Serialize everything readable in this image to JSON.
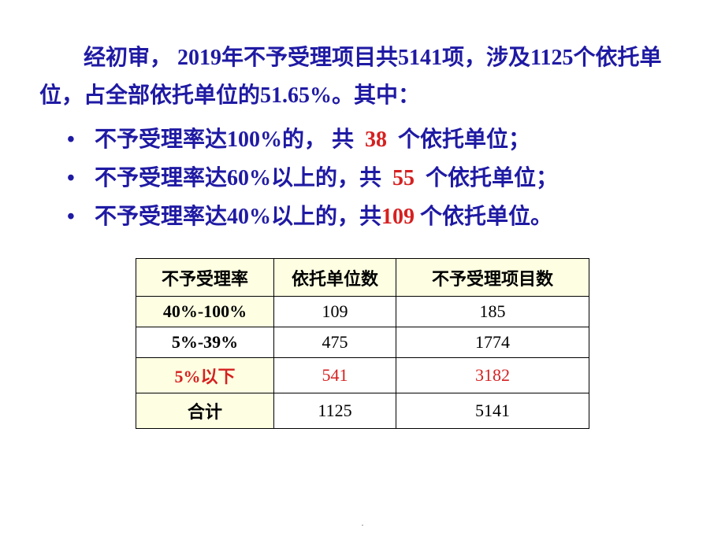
{
  "intro": "经初审， 2019年不予受理项目共5141项，涉及1125个依托单位，占全部依托单位的51.65%。其中：",
  "bullets": [
    {
      "prefix": "不予受理率达100%的，   共 ",
      "num": "38",
      "suffix": " 个依托单位；"
    },
    {
      "prefix": "不予受理率达60%以上的，共 ",
      "num": "55",
      "suffix": " 个依托单位；"
    },
    {
      "prefix": "不予受理率达40%以上的，共",
      "num": "109",
      "suffix": " 个依托单位。"
    }
  ],
  "table": {
    "columns": [
      {
        "label": "不予受理率",
        "width_class": "col-rate"
      },
      {
        "label": "依托单位数",
        "width_class": "col-units"
      },
      {
        "label": "不予受理项目数",
        "width_class": "col-projects"
      }
    ],
    "rows": [
      {
        "rate": "40%-100%",
        "units": "109",
        "projects": "185",
        "classes": "row-highlight row-bold"
      },
      {
        "rate": "5%-39%",
        "units": "475",
        "projects": "1774",
        "classes": "row-bold"
      },
      {
        "rate": "5%以下",
        "units": "541",
        "projects": "3182",
        "classes": "row-highlight row-red"
      },
      {
        "rate": "合计",
        "units": "1125",
        "projects": "5141",
        "classes": "row-total"
      }
    ]
  },
  "colors": {
    "text_primary": "#1f1aa3",
    "text_emphasis": "#d62020",
    "table_highlight_bg": "#feffe2",
    "table_border": "#000000",
    "background": "#ffffff"
  },
  "footer_mark": "."
}
